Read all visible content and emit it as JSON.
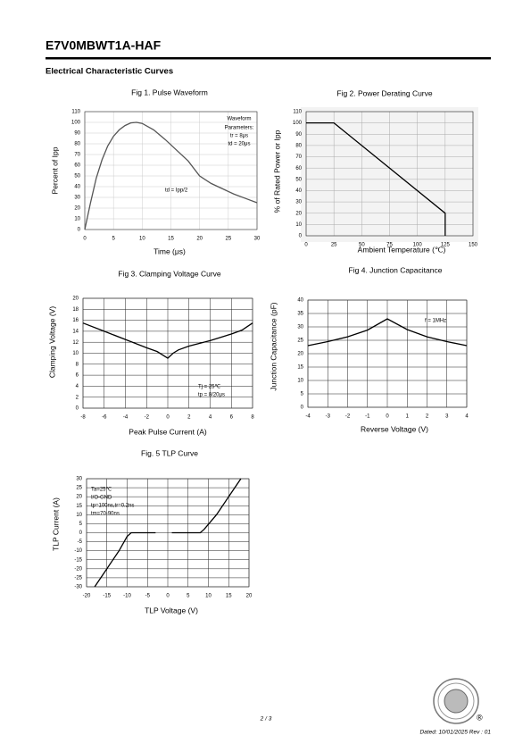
{
  "header": {
    "title": "E7V0MBWT1A-HAF",
    "section": "Electrical Characteristic Curves"
  },
  "footer": {
    "page": "2 / 3",
    "dated": "Dated:  10/01/2025    Rev  :  01",
    "logo_mark": "®"
  },
  "chart_data": [
    {
      "type": "line",
      "title": "Fig 1. Pulse Waveform",
      "x_label": "Time (μs)",
      "y_label": "Percent of Ipp",
      "x": [
        0,
        1,
        2,
        3,
        4,
        5,
        6,
        7,
        8,
        9,
        10,
        12,
        14,
        16,
        18,
        20,
        22,
        24,
        26,
        28,
        30
      ],
      "values": [
        0,
        25,
        48,
        65,
        78,
        87,
        93,
        97,
        99.5,
        100,
        99,
        93,
        84,
        74,
        64,
        50,
        43,
        38,
        33,
        29,
        25
      ],
      "color": "#555555",
      "xlim": [
        0,
        30
      ],
      "ylim": [
        0,
        110
      ],
      "xticks": [
        0,
        5,
        10,
        15,
        20,
        25,
        30
      ],
      "yticks": [
        0,
        10,
        20,
        30,
        40,
        50,
        60,
        70,
        80,
        90,
        100,
        110
      ],
      "grid": true,
      "annotations": [
        "Waveform",
        "Parameters:",
        "tr = 8μs",
        "td = 20μs",
        "td = Ipp/2"
      ]
    },
    {
      "type": "line",
      "title": "Fig 2. Power Derating Curve",
      "x_label": "Ambient Temperature (℃)",
      "y_label": "% of Rated Power or Ipp",
      "x": [
        0,
        25,
        125,
        125
      ],
      "values": [
        100,
        100,
        20,
        0
      ],
      "color": "#000000",
      "xlim": [
        0,
        150
      ],
      "ylim": [
        0,
        110
      ],
      "xticks": [
        0,
        25,
        50,
        75,
        100,
        125,
        150
      ],
      "yticks": [
        0,
        10,
        20,
        30,
        40,
        50,
        60,
        70,
        80,
        90,
        100,
        110
      ],
      "grid": true,
      "annotations": []
    },
    {
      "type": "line",
      "title": "Fig 3. Clamping Voltage Curve",
      "x_label": "Peak Pulse Current    (A)",
      "y_label": "Clamping Voltage (V)",
      "x": [
        -8,
        -6,
        -4,
        -2,
        -1,
        0,
        0.5,
        1,
        2,
        4,
        6,
        7,
        8
      ],
      "values": [
        15.5,
        14,
        12.5,
        11,
        10.3,
        9.1,
        10,
        10.6,
        11.3,
        12.3,
        13.5,
        14.2,
        15.5
      ],
      "color": "#000000",
      "xlim": [
        -8,
        8
      ],
      "ylim": [
        0,
        20
      ],
      "xticks": [
        -8,
        -6,
        -4,
        -2,
        0,
        2,
        4,
        6,
        8
      ],
      "yticks": [
        0,
        2,
        4,
        6,
        8,
        10,
        12,
        14,
        16,
        18,
        20
      ],
      "grid": true,
      "annotations": [
        "Tj = 25℃",
        "tp = 8/20μs"
      ]
    },
    {
      "type": "line",
      "title": "Fig 4. Junction Capacitance",
      "x_label": "Reverse Voltage (V)",
      "y_label": "Junction Capacitance (pF)",
      "x": [
        -4,
        -3,
        -2,
        -1,
        0,
        1,
        2,
        3,
        4
      ],
      "values": [
        23,
        24.5,
        26.3,
        28.8,
        33,
        29,
        26.3,
        24.5,
        23
      ],
      "color": "#000000",
      "xlim": [
        -4,
        4
      ],
      "ylim": [
        0,
        40
      ],
      "xticks": [
        -4,
        -3,
        -2,
        -1,
        0,
        1,
        2,
        3,
        4
      ],
      "yticks": [
        0,
        5,
        10,
        15,
        20,
        25,
        30,
        35,
        40
      ],
      "grid": true,
      "annotations": [
        "f = 1MHz"
      ]
    },
    {
      "type": "line",
      "title": "Fig. 5 TLP Curve",
      "x_label": "TLP Voltage (V)",
      "y_label": "TLP Current (A)",
      "x": [
        -18,
        -15,
        -12,
        -10,
        -9,
        -3,
        null,
        1,
        8,
        9,
        12,
        15,
        18
      ],
      "values": [
        -30,
        -20,
        -10,
        -2,
        0,
        0,
        null,
        0,
        0,
        2,
        10,
        20,
        30
      ],
      "color": "#000000",
      "xlim": [
        -20,
        20
      ],
      "ylim": [
        -30,
        30
      ],
      "xticks": [
        -20,
        -15,
        -10,
        -5,
        0,
        5,
        10,
        15,
        20
      ],
      "yticks": [
        -30,
        -25,
        -20,
        -15,
        -10,
        -5,
        0,
        5,
        10,
        15,
        20,
        25,
        30
      ],
      "grid": true,
      "annotations": [
        "Ta=25℃",
        "I/O-GND",
        "tp=100ns,tr=0.2ns",
        "tm=70-90ns"
      ]
    }
  ]
}
